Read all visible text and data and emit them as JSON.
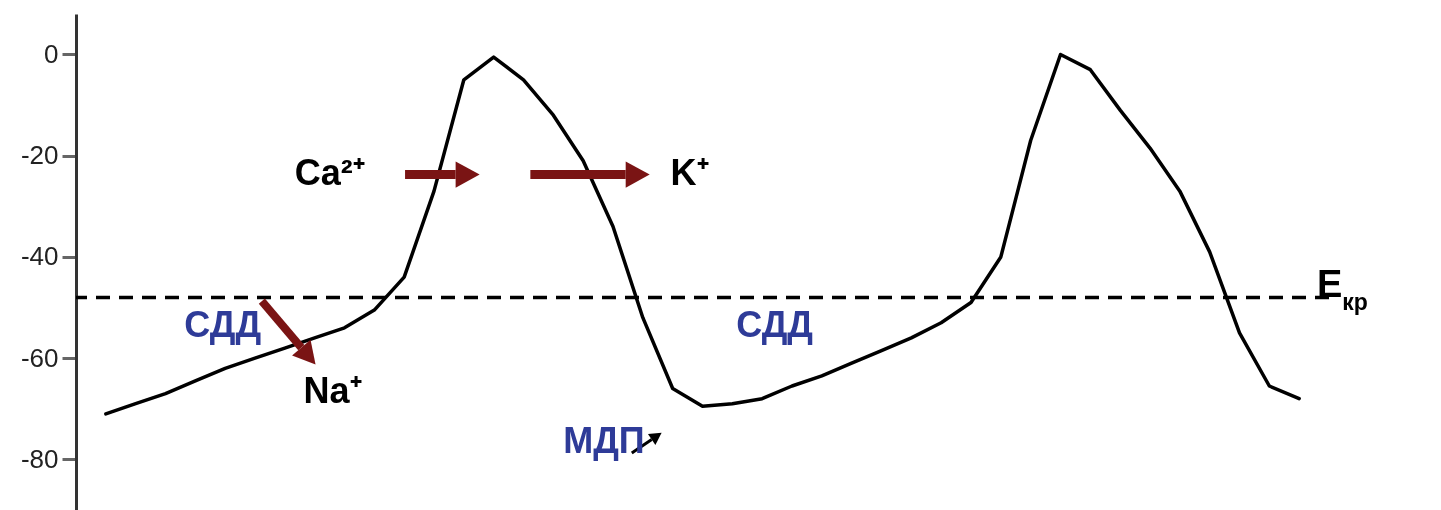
{
  "chart_data": {
    "type": "line",
    "tick_labels": "y",
    "grid": false,
    "marker": "none",
    "line_style": "solid",
    "ylim": [
      -90,
      8
    ],
    "yticks": [
      -80,
      -60,
      -40,
      -20,
      0
    ],
    "categories": [
      null,
      null,
      null,
      null,
      null,
      null,
      null,
      null,
      null,
      null,
      null,
      null,
      null,
      null,
      null,
      null,
      null,
      null,
      null,
      null,
      null,
      null,
      null,
      null,
      null,
      null,
      null,
      null,
      null,
      null,
      null,
      null,
      null,
      null,
      null,
      null,
      null,
      null,
      null,
      null,
      null
    ],
    "series": [
      {
        "color": "#000000",
        "values": [
          -71,
          -69,
          -67,
          -64.5,
          -62,
          -60,
          -58,
          -56,
          -54,
          -50.5,
          -44,
          -27,
          -5,
          -0.5,
          -5,
          -12,
          -21,
          -34,
          -52,
          -66,
          -69.5,
          -69,
          -68,
          -65.5,
          -63.5,
          -61,
          -58.5,
          -56,
          -53,
          -49,
          -40,
          -17,
          0,
          -3,
          -11,
          -18.5,
          -27,
          -39,
          -55,
          -65.5,
          -68
        ]
      }
    ],
    "ref_lines": [
      {
        "axis": "y",
        "value": -48,
        "label": "E$_{кр}$",
        "color": "#000000",
        "line_style": "dashed"
      }
    ],
    "annotations": [
      "Ca²⁺",
      "K⁺",
      "Na⁺",
      "СДД",
      "СДД",
      "МДП"
    ]
  }
}
